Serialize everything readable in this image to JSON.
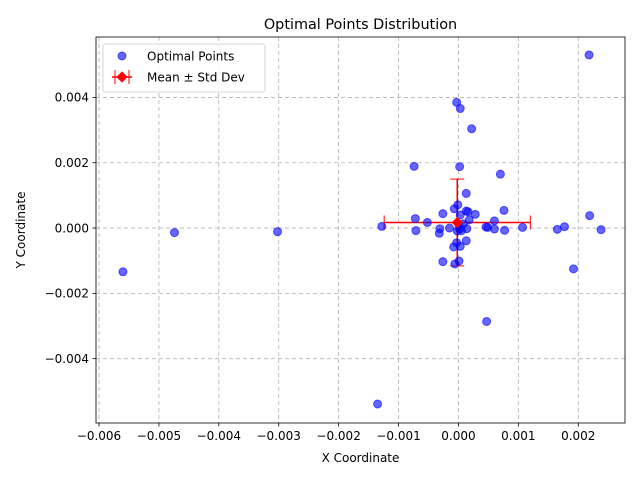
{
  "chart_data": {
    "type": "scatter",
    "title": "Optimal Points Distribution",
    "xlabel": "X Coordinate",
    "ylabel": "Y Coordinate",
    "xlim": [
      -0.00605,
      0.00278
    ],
    "ylim": [
      -0.00597,
      0.00585
    ],
    "xticks": [
      -0.006,
      -0.005,
      -0.004,
      -0.003,
      -0.002,
      -0.001,
      0.0,
      0.001,
      0.002
    ],
    "xtick_labels": [
      "−0.006",
      "−0.005",
      "−0.004",
      "−0.003",
      "−0.002",
      "−0.001",
      "0.000",
      "0.001",
      "0.002"
    ],
    "yticks": [
      -0.004,
      -0.002,
      0.0,
      0.002,
      0.004
    ],
    "ytick_labels": [
      "−0.004",
      "−0.002",
      "0.000",
      "0.002",
      "0.004"
    ],
    "grid": true,
    "legend_position": "top-left",
    "series": [
      {
        "name": "Optimal Points",
        "color": "#0000ff",
        "points": [
          [
            0.00218,
            0.0053
          ],
          [
            -3e-05,
            0.00385
          ],
          [
            3e-05,
            0.00366
          ],
          [
            0.00022,
            0.00304
          ],
          [
            -0.00074,
            0.00189
          ],
          [
            2e-05,
            0.00188
          ],
          [
            0.0007,
            0.00165
          ],
          [
            0.00013,
            0.00106
          ],
          [
            -1e-05,
            0.00071
          ],
          [
            -7e-05,
            0.00059
          ],
          [
            0.00013,
            0.00052
          ],
          [
            0.00016,
            0.0005
          ],
          [
            0.00076,
            0.00054
          ],
          [
            -0.00026,
            0.00044
          ],
          [
            0.00028,
            0.00042
          ],
          [
            3e-05,
            0.0004
          ],
          [
            0.00219,
            0.00038
          ],
          [
            -0.00072,
            0.00029
          ],
          [
            0.00018,
            0.00025
          ],
          [
            0.0006,
            0.00022
          ],
          [
            -0.00052,
            0.00017
          ],
          [
            8e-05,
            0.00013
          ],
          [
            1e-05,
            0.0001
          ],
          [
            -0.00128,
            5e-05
          ],
          [
            0.00046,
            3e-05
          ],
          [
            0.00049,
            2e-05
          ],
          [
            0.00107,
            2e-05
          ],
          [
            0.00177,
            4e-05
          ],
          [
            -0.00015,
            0.0
          ],
          [
            -0.00031,
            -2e-05
          ],
          [
            0.00014,
            -2e-05
          ],
          [
            2e-05,
            -3e-05
          ],
          [
            0.0006,
            -3e-05
          ],
          [
            0.00165,
            -4e-05
          ],
          [
            0.00238,
            -5e-05
          ],
          [
            0.00077,
            -7e-05
          ],
          [
            5e-05,
            -8e-05
          ],
          [
            -0.00071,
            -8e-05
          ],
          [
            -2e-05,
            -9e-05
          ],
          [
            -0.00302,
            -0.00011
          ],
          [
            -0.00474,
            -0.00014
          ],
          [
            -0.00032,
            -0.00016
          ],
          [
            0.00013,
            -0.00039
          ],
          [
            -3e-05,
            -0.00045
          ],
          [
            3e-05,
            -0.00056
          ],
          [
            -8e-05,
            -0.00058
          ],
          [
            -0.00026,
            -0.00103
          ],
          [
            1e-05,
            -0.00101
          ],
          [
            -6e-05,
            -0.0011
          ],
          [
            0.00192,
            -0.00125
          ],
          [
            -0.0056,
            -0.00134
          ],
          [
            0.00047,
            -0.00286
          ],
          [
            -0.00135,
            -0.00539
          ]
        ]
      }
    ],
    "summary": {
      "name": "Mean ± Std Dev",
      "color": "#ff0000",
      "mean": [
        -2e-05,
        0.00017
      ],
      "std": [
        0.00122,
        0.00133
      ]
    }
  }
}
